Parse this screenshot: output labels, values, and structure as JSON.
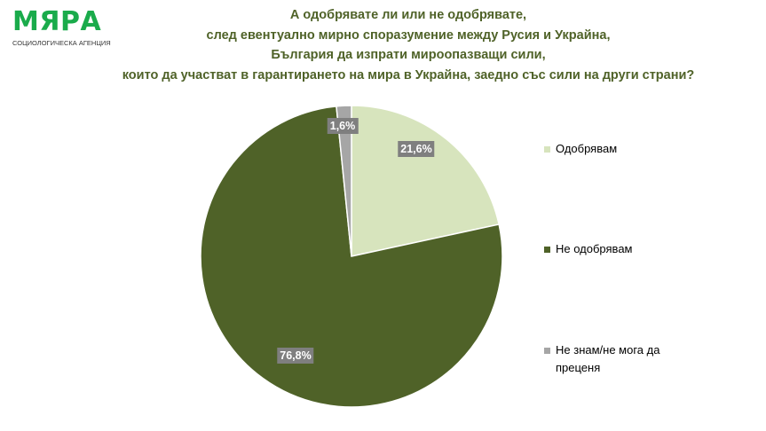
{
  "logo": {
    "name": "МЯРА",
    "subtitle": "СОЦИОЛОГИЧЕСКА АГЕНЦИЯ"
  },
  "chart_data": {
    "type": "pie",
    "title": [
      "А одобрявате ли или не одобрявате,",
      "след евентуално мирно споразумение между Русия и Украйна,",
      "България да изпрати мироопазващи сили,",
      "които да участват в гарантирането на мира в Украйна, заедно със сили на други страни?"
    ],
    "categories": [
      "Одобрявам",
      "Не одобрявам",
      "Не знам/не мога да преценя"
    ],
    "values": [
      21.6,
      76.8,
      1.6
    ],
    "data_labels": [
      "21,6%",
      "76,8%",
      "1,6%"
    ],
    "colors": [
      "#d7e4bd",
      "#4f6228",
      "#a6a6a6"
    ],
    "legend_position": "right"
  }
}
